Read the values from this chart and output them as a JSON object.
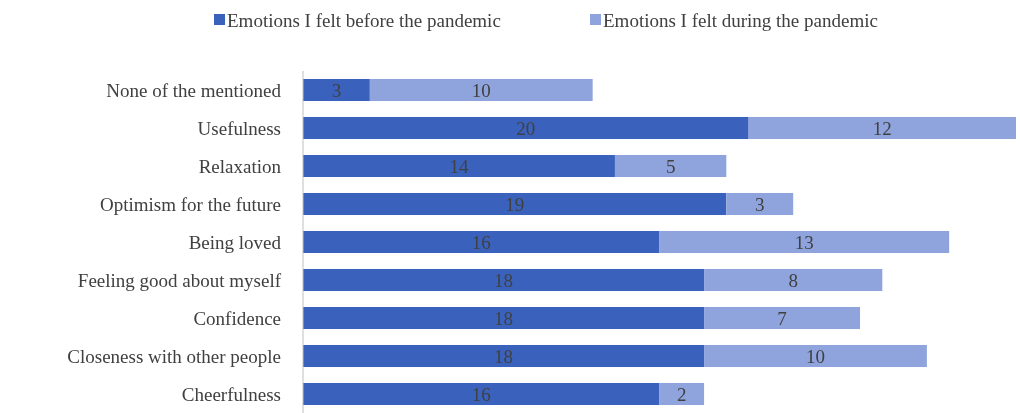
{
  "chart_data": {
    "type": "bar",
    "orientation": "horizontal",
    "stacked": true,
    "data_labels": true,
    "legend": "top",
    "categories": [
      "None of the mentioned",
      "Usefulness",
      "Relaxation",
      "Optimism for the future",
      "Being loved",
      "Feeling good about myself",
      "Confidence",
      "Closeness with other people",
      "Cheerfulness"
    ],
    "series": [
      {
        "name": "Emotions I felt before the pandemic",
        "color": "#3a62bd",
        "values": [
          3,
          20,
          14,
          19,
          16,
          18,
          18,
          18,
          16
        ]
      },
      {
        "name": "Emotions I felt during the pandemic",
        "color": "#8fa4dc",
        "values": [
          10,
          12,
          5,
          3,
          13,
          8,
          7,
          10,
          2
        ]
      }
    ]
  }
}
